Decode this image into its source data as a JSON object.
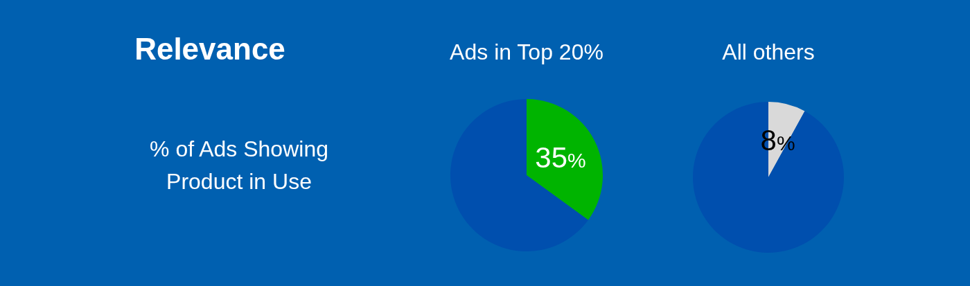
{
  "chart_data": [
    {
      "type": "other",
      "title": "Relevance",
      "annotations": [
        "% of Ads Showing Product in Use"
      ]
    },
    {
      "type": "pie",
      "title": "Ads in Top 20%",
      "categories": [
        null,
        null
      ],
      "values": [
        35,
        65
      ],
      "colors": [
        "#00b400",
        "#004fae"
      ],
      "value_labels": [
        "35%",
        null
      ]
    },
    {
      "type": "pie",
      "title": "All others",
      "categories": [
        null,
        null
      ],
      "values": [
        8,
        92
      ],
      "colors": [
        "#d9d9d9",
        "#004fae"
      ],
      "value_labels": [
        "8%",
        null
      ]
    }
  ]
}
